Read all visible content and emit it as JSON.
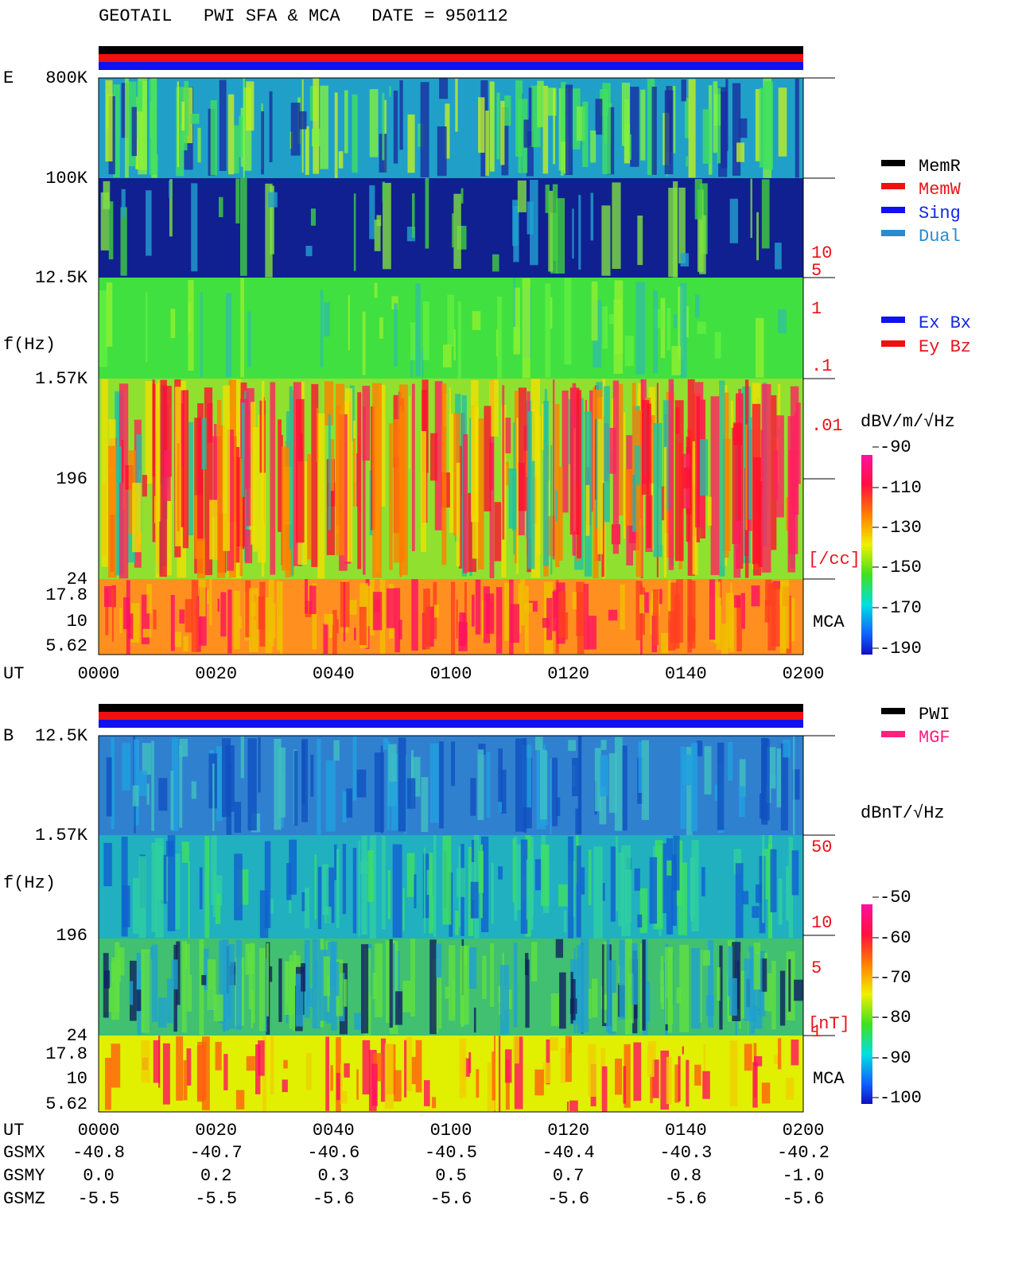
{
  "title": "GEOTAIL   PWI SFA & MCA   DATE = 950112",
  "panels": [
    {
      "label": "E",
      "yticks": [
        "800K",
        "100K",
        "12.5K",
        "1.57K",
        "196",
        "24",
        "17.8",
        "10",
        "5.62"
      ],
      "ylabel": "f(Hz)",
      "density_ticks": [
        "10",
        "5",
        "1",
        ".1",
        ".01"
      ],
      "density_unit": "[/cc]",
      "mca": "MCA",
      "colorbar_title": "dBV/m/√Hz",
      "colorbar_ticks": [
        -90,
        -110,
        -130,
        -150,
        -170,
        -190
      ]
    },
    {
      "label": "B",
      "yticks": [
        "12.5K",
        "1.57K",
        "196",
        "24",
        "17.8",
        "10",
        "5.62"
      ],
      "ylabel": "f(Hz)",
      "density_ticks": [
        "50",
        "10",
        "5",
        "1"
      ],
      "density_unit": "[nT]",
      "mca": "MCA",
      "colorbar_title": "dBnT/√Hz",
      "colorbar_ticks": [
        -50,
        -60,
        -70,
        -80,
        -90,
        -100
      ]
    }
  ],
  "legend_mode": [
    "MemR",
    "MemW",
    "Sing",
    "Dual"
  ],
  "legend_antenna": [
    "Ex Bx",
    "Ey Bz"
  ],
  "legend_b": [
    "PWI",
    "MGF"
  ],
  "time": {
    "label": "UT",
    "ticks": [
      "0000",
      "0020",
      "0040",
      "0100",
      "0120",
      "0140",
      "0200"
    ]
  },
  "orbit": [
    {
      "label": "GSMX",
      "values": [
        "-40.8",
        "-40.7",
        "-40.6",
        "-40.5",
        "-40.4",
        "-40.3",
        "-40.2"
      ]
    },
    {
      "label": "GSMY",
      "values": [
        "0.0",
        "0.2",
        "0.3",
        "0.5",
        "0.7",
        "0.8",
        "-1.0"
      ]
    },
    {
      "label": "GSMZ",
      "values": [
        "-5.5",
        "-5.5",
        "-5.6",
        "-5.6",
        "-5.6",
        "-5.6",
        "-5.6"
      ]
    }
  ]
}
